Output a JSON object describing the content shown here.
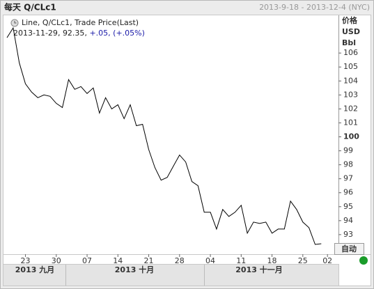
{
  "chart_data": {
    "type": "line",
    "title": "每天 Q/CLc1",
    "date_range": "2013-9-18 - 2013-12-4 (NYC)",
    "legend": {
      "series_label": "Line, Q/CLc1, Trade Price(Last)",
      "last_date": "2013-11-29",
      "last_value": 92.35,
      "change": "+.05",
      "change_pct": "+.05%"
    },
    "y_axis_label": [
      "价格",
      "USD",
      "Bbl"
    ],
    "categories": [
      null,
      null,
      null,
      "23",
      null,
      null,
      null,
      null,
      "30",
      null,
      null,
      null,
      null,
      "07",
      null,
      null,
      null,
      null,
      "14",
      null,
      null,
      null,
      null,
      "21",
      null,
      null,
      null,
      null,
      "28",
      null,
      null,
      null,
      null,
      "04",
      null,
      null,
      null,
      null,
      "11",
      null,
      null,
      null,
      null,
      "18",
      null,
      null,
      null,
      null,
      "25",
      null,
      null,
      null,
      "02"
    ],
    "month_labels": [
      "2013 九月",
      "2013 十月",
      "2013 十一月"
    ],
    "series": [
      {
        "name": "Q/CLc1",
        "color": "#000000",
        "values": [
          107.1,
          107.8,
          105.3,
          103.8,
          103.2,
          102.8,
          103.0,
          102.9,
          102.4,
          102.1,
          104.1,
          103.4,
          103.6,
          103.1,
          103.5,
          101.7,
          102.8,
          102.0,
          102.3,
          101.3,
          102.3,
          100.8,
          100.9,
          99.1,
          97.8,
          96.9,
          97.1,
          97.9,
          98.7,
          98.2,
          96.8,
          96.5,
          94.6,
          94.6,
          93.4,
          94.8,
          94.3,
          94.6,
          95.1,
          93.1,
          93.9,
          93.8,
          93.9,
          93.1,
          93.4,
          93.4,
          95.4,
          94.8,
          93.9,
          93.5,
          92.3,
          92.35,
          null
        ]
      }
    ],
    "ylim": [
      91.6,
      108.7
    ],
    "yticks": [
      93,
      94,
      95,
      96,
      97,
      98,
      99,
      100,
      101,
      102,
      103,
      104,
      105,
      106
    ],
    "emphasized_ytick": 100,
    "auto_button": "自动"
  }
}
